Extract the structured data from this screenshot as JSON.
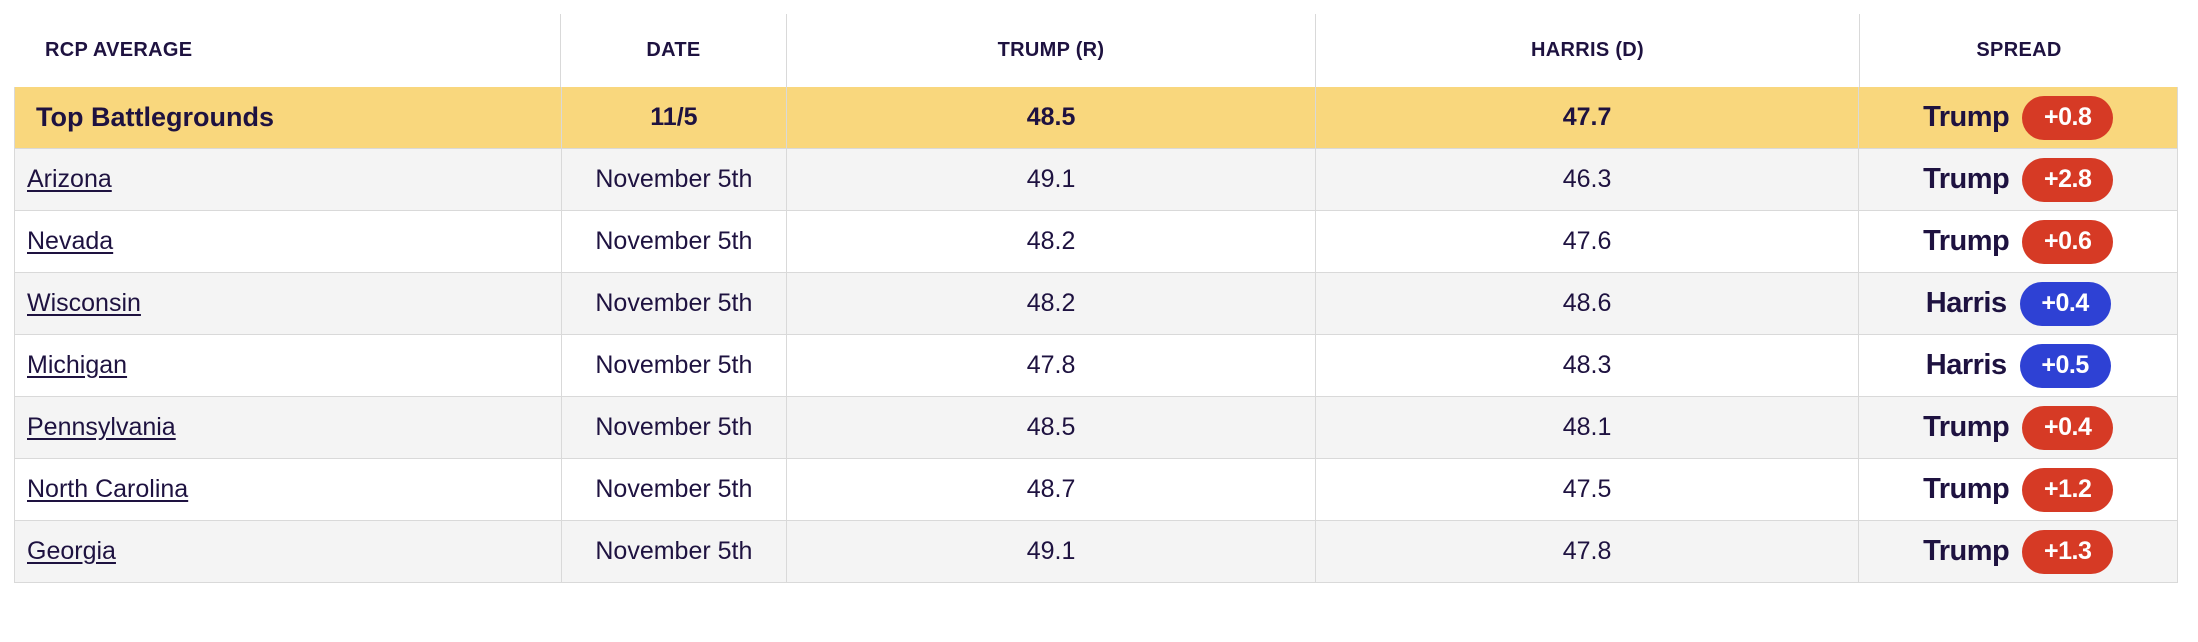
{
  "colors": {
    "text_navy": "#1e1240",
    "highlight_yellow": "#f9d77d",
    "stripe_gray": "#f4f4f4",
    "border_gray": "#d9d9d9",
    "trump_red": "#d63a25",
    "harris_blue": "#2e41d4"
  },
  "table": {
    "columns": [
      {
        "label": "RCP AVERAGE"
      },
      {
        "label": "DATE"
      },
      {
        "label": "TRUMP (R)"
      },
      {
        "label": "HARRIS (D)"
      },
      {
        "label": "SPREAD"
      }
    ],
    "rows": [
      {
        "name": "Top Battlegrounds",
        "date": "11/5",
        "trump": "48.5",
        "harris": "47.7",
        "spread_leader": "Trump",
        "spread_value": "+0.8",
        "badge_color": "#d63a25"
      },
      {
        "name": "Arizona",
        "date": "November 5th",
        "trump": "49.1",
        "harris": "46.3",
        "spread_leader": "Trump",
        "spread_value": "+2.8",
        "badge_color": "#d63a25"
      },
      {
        "name": "Nevada",
        "date": "November 5th",
        "trump": "48.2",
        "harris": "47.6",
        "spread_leader": "Trump",
        "spread_value": "+0.6",
        "badge_color": "#d63a25"
      },
      {
        "name": "Wisconsin",
        "date": "November 5th",
        "trump": "48.2",
        "harris": "48.6",
        "spread_leader": "Harris",
        "spread_value": "+0.4",
        "badge_color": "#2e41d4"
      },
      {
        "name": "Michigan",
        "date": "November 5th",
        "trump": "47.8",
        "harris": "48.3",
        "spread_leader": "Harris",
        "spread_value": "+0.5",
        "badge_color": "#2e41d4"
      },
      {
        "name": "Pennsylvania",
        "date": "November 5th",
        "trump": "48.5",
        "harris": "48.1",
        "spread_leader": "Trump",
        "spread_value": "+0.4",
        "badge_color": "#d63a25"
      },
      {
        "name": "North Carolina",
        "date": "November 5th",
        "trump": "48.7",
        "harris": "47.5",
        "spread_leader": "Trump",
        "spread_value": "+1.2",
        "badge_color": "#d63a25"
      },
      {
        "name": "Georgia",
        "date": "November 5th",
        "trump": "49.1",
        "harris": "47.8",
        "spread_leader": "Trump",
        "spread_value": "+1.3",
        "badge_color": "#d63a25"
      }
    ]
  }
}
